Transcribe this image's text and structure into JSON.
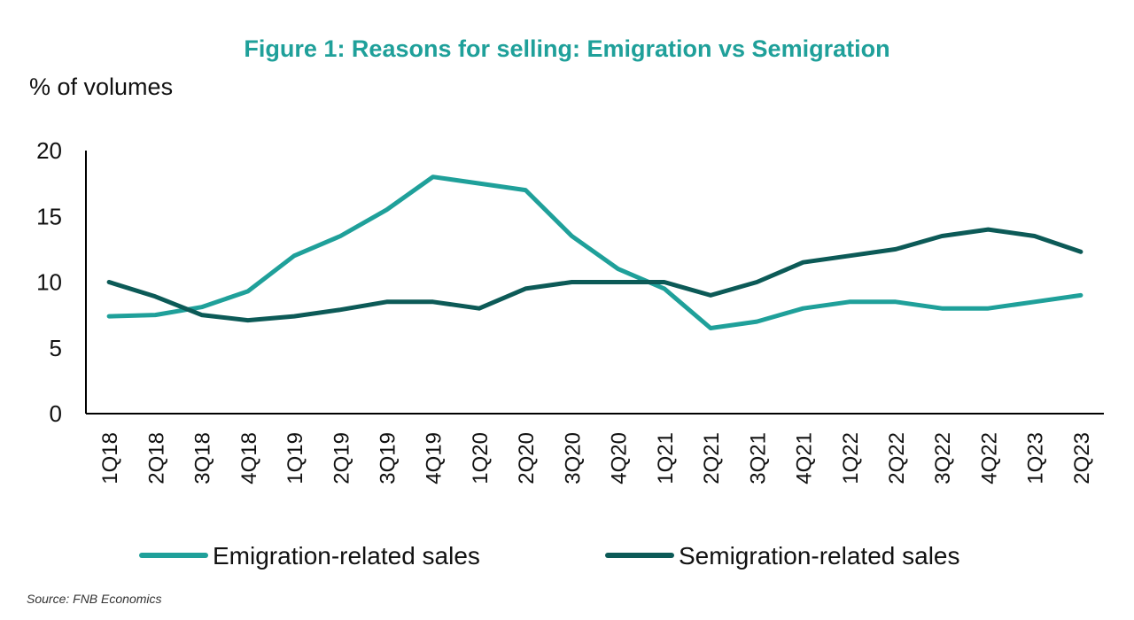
{
  "chart_data": {
    "type": "line",
    "title": "Figure 1: Reasons for selling: Emigration vs Semigration",
    "ylabel": "% of volumes",
    "xlabel": "",
    "ylim": [
      0,
      20
    ],
    "yticks": [
      0,
      5,
      10,
      15,
      20
    ],
    "categories": [
      "1Q18",
      "2Q18",
      "3Q18",
      "4Q18",
      "1Q19",
      "2Q19",
      "3Q19",
      "4Q19",
      "1Q20",
      "2Q20",
      "3Q20",
      "4Q20",
      "1Q21",
      "2Q21",
      "3Q21",
      "4Q21",
      "1Q22",
      "2Q22",
      "3Q22",
      "4Q22",
      "1Q23",
      "2Q23"
    ],
    "series": [
      {
        "name": "Emigration-related sales",
        "color": "#1fa09a",
        "values": [
          7.4,
          7.5,
          8.1,
          9.3,
          12.0,
          13.5,
          15.5,
          18.0,
          17.5,
          17.0,
          13.5,
          11.0,
          9.5,
          6.5,
          7.0,
          8.0,
          8.5,
          8.5,
          8.0,
          8.0,
          8.5,
          9.0
        ]
      },
      {
        "name": "Semigration-related sales",
        "color": "#0c5a57",
        "values": [
          10.0,
          8.9,
          7.5,
          7.1,
          7.4,
          7.9,
          8.5,
          8.5,
          8.0,
          9.5,
          10.0,
          10.0,
          10.0,
          9.0,
          10.0,
          11.5,
          12.0,
          12.5,
          13.5,
          14.0,
          13.5,
          12.3
        ]
      }
    ],
    "legend_position": "bottom",
    "grid": false,
    "title_color": "#1fa09a",
    "source": "Source: FNB Economics"
  }
}
